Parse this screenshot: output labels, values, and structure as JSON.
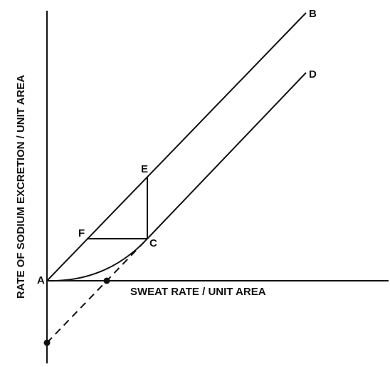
{
  "axes": {
    "x_label": "SWEAT RATE / UNIT AREA",
    "y_label": "RATE OF SODIUM EXCRETION / UNIT AREA"
  },
  "points": [
    {
      "label": "A"
    },
    {
      "label": "B"
    },
    {
      "label": "C"
    },
    {
      "label": "D"
    },
    {
      "label": "E"
    },
    {
      "label": "F"
    }
  ]
}
